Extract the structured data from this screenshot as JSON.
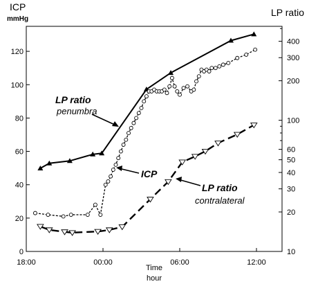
{
  "chart_data": {
    "type": "line",
    "title": "",
    "left_axis": {
      "label": "ICP",
      "unit": "mmHg",
      "range": [
        0,
        135
      ],
      "ticks": [
        0,
        20,
        40,
        60,
        80,
        100,
        120
      ],
      "tick_labels": [
        "0",
        "20",
        "40",
        "60",
        "80",
        "100",
        "120"
      ]
    },
    "right_axis": {
      "label": "LP ratio",
      "scale": "log",
      "range": [
        10,
        520
      ],
      "ticks": [
        10,
        20,
        30,
        40,
        50,
        60,
        100,
        200,
        300,
        400
      ],
      "tick_labels": [
        "10",
        "20",
        "30",
        "40",
        "50",
        "60",
        "100",
        "200",
        "300",
        "400"
      ]
    },
    "x_axis": {
      "label_line1": "Time",
      "label_line2": "hour",
      "range": [
        -6,
        14
      ],
      "ticks": [
        -6,
        0,
        6,
        12
      ],
      "tick_labels": [
        "18:00",
        "00:00",
        "06:00",
        "12:00"
      ]
    },
    "series": [
      {
        "name": "LP ratio penumbra",
        "axis": "right",
        "style": "solid",
        "marker": "triangle-up",
        "x": [
          -4.9,
          -4.2,
          -2.6,
          -0.8,
          -0.1,
          3.4,
          5.3,
          10.0,
          11.8
        ],
        "y": [
          43,
          47,
          49,
          55,
          56,
          172,
          230,
          405,
          453
        ]
      },
      {
        "name": "ICP",
        "axis": "left",
        "style": "short-dash",
        "marker": "circle",
        "x": [
          -5.3,
          -4.3,
          -3.1,
          -2.5,
          -1.2,
          -0.6,
          -0.2,
          0.2,
          0.4,
          0.6,
          0.8,
          1.0,
          1.2,
          1.4,
          1.6,
          1.8,
          2.0,
          2.2,
          2.4,
          2.6,
          2.8,
          3.0,
          3.2,
          3.4,
          3.6,
          3.8,
          4.0,
          4.2,
          4.4,
          4.6,
          4.8,
          5.0,
          5.2,
          5.4,
          5.6,
          5.8,
          6.0,
          6.3,
          6.6,
          6.9,
          7.1,
          7.3,
          7.5,
          7.7,
          7.9,
          8.1,
          8.3,
          8.5,
          8.8,
          9.1,
          9.4,
          9.8,
          10.5,
          11.2,
          11.9
        ],
        "y": [
          23,
          22,
          21,
          22,
          22,
          28,
          22,
          40,
          42,
          45,
          49,
          52,
          56,
          60,
          64,
          67,
          71,
          74,
          77,
          80,
          83,
          86,
          90,
          93,
          96,
          96,
          97,
          96,
          96,
          96,
          97,
          95,
          99,
          104,
          99,
          96,
          94,
          98,
          99,
          96,
          97,
          102,
          105,
          109,
          108,
          109,
          108,
          110,
          110,
          111,
          112,
          113,
          116,
          118,
          121
        ]
      },
      {
        "name": "LP ratio contralateral",
        "axis": "right",
        "style": "long-dash",
        "marker": "triangle-down",
        "x": [
          -4.9,
          -4.2,
          -3.0,
          -2.4,
          -0.4,
          0.5,
          1.5,
          3.7,
          5.1,
          6.2,
          7.2,
          8.0,
          9.0,
          10.5,
          11.8
        ],
        "y": [
          15.5,
          14.6,
          14.1,
          13.9,
          14.2,
          14.6,
          15.4,
          25,
          34,
          48,
          53,
          58,
          67,
          78,
          92
        ]
      }
    ],
    "annotations": [
      {
        "lines": [
          "LP ratio",
          "penumbra"
        ]
      },
      {
        "lines": [
          "ICP"
        ]
      },
      {
        "lines": [
          "LP ratio",
          "contralateral"
        ]
      }
    ],
    "grid": false,
    "legend": "none"
  }
}
